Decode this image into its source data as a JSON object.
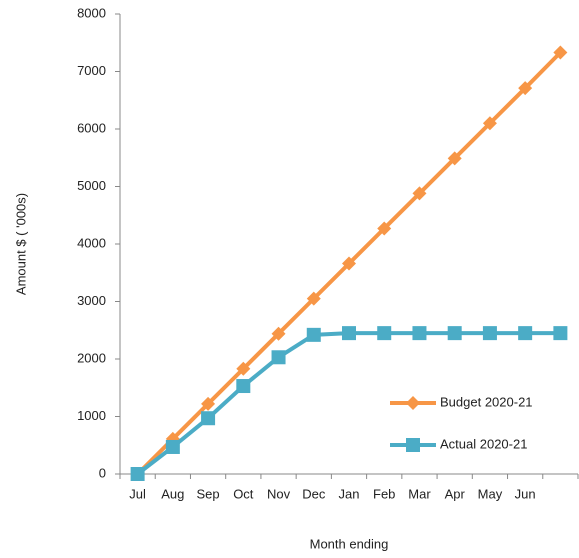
{
  "chart_data": {
    "type": "line",
    "x_label": "Month ending",
    "y_label": "Amount $ ( '000s)",
    "categories": [
      "Jul",
      "Aug",
      "Sep",
      "Oct",
      "Nov",
      "Dec",
      "Jan",
      "Feb",
      "Mar",
      "Apr",
      "May",
      "Jun",
      null
    ],
    "series": [
      {
        "name": "Budget 2020-21",
        "color": "#f79646",
        "marker": "diamond",
        "values": [
          0,
          610,
          1220,
          1830,
          2440,
          3050,
          3660,
          4270,
          4880,
          5490,
          6100,
          6710,
          7330
        ]
      },
      {
        "name": "Actual 2020-21",
        "color": "#4bacc6",
        "marker": "square",
        "values": [
          0,
          470,
          970,
          1530,
          2030,
          2420,
          2450,
          2450,
          2450,
          2450,
          2450,
          2450,
          2450
        ]
      }
    ],
    "ylim": [
      0,
      8000
    ],
    "yticks": [
      0,
      1000,
      2000,
      3000,
      4000,
      5000,
      6000,
      7000,
      8000
    ],
    "grid": false,
    "legend": "lower right"
  }
}
